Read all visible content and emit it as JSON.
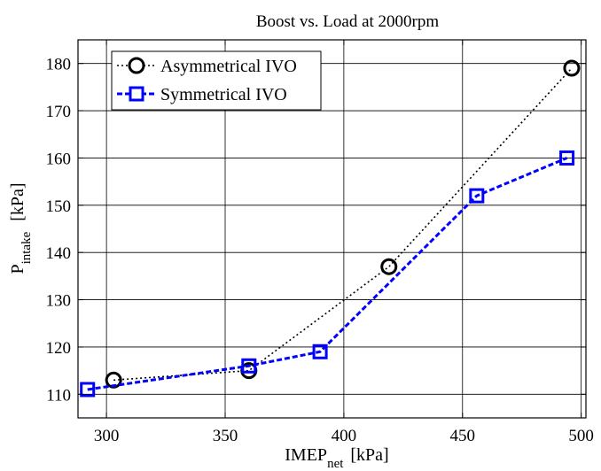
{
  "chart_data": {
    "type": "line",
    "title": "Boost vs. Load at 2000rpm",
    "xlabel": {
      "main": "IMEP",
      "sub": "net",
      "unit": "[kPa]"
    },
    "ylabel": {
      "main": "P",
      "sub": "intake",
      "unit": "[kPa]"
    },
    "xlim": [
      288,
      502
    ],
    "ylim": [
      105,
      185
    ],
    "xticks": [
      300,
      350,
      400,
      450,
      500
    ],
    "yticks": [
      110,
      120,
      130,
      140,
      150,
      160,
      170,
      180
    ],
    "xtick_labels": [
      "300",
      "350",
      "400",
      "450",
      "500"
    ],
    "ytick_labels": [
      "110",
      "120",
      "130",
      "140",
      "150",
      "160",
      "170",
      "180"
    ],
    "grid": true,
    "legend_position": "top-left",
    "series": [
      {
        "name": "Asymmetrical IVO",
        "color": "#000000",
        "line_style": "dotted",
        "marker": "circle",
        "x": [
          303,
          360,
          419,
          496
        ],
        "y": [
          113,
          115,
          137,
          179
        ]
      },
      {
        "name": "Symmetrical IVO",
        "color": "#0000ff",
        "line_style": "dashed",
        "marker": "square",
        "x": [
          292,
          360,
          390,
          456,
          494
        ],
        "y": [
          111,
          116,
          119,
          152,
          160
        ]
      }
    ]
  }
}
